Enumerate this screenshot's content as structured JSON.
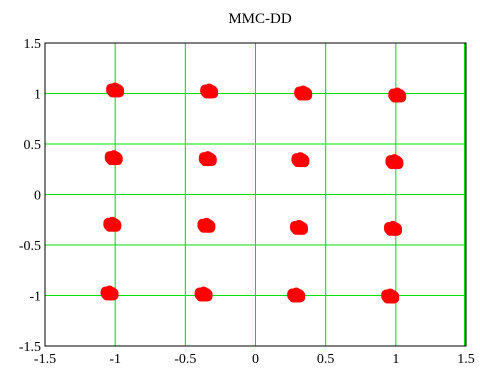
{
  "chart_data": {
    "type": "scatter",
    "title": "MMC-DD",
    "xlabel": "",
    "ylabel": "",
    "xlim": [
      -1.5,
      1.5
    ],
    "ylim": [
      -1.5,
      1.5
    ],
    "xticks": [
      -1.5,
      -1,
      -0.5,
      0,
      0.5,
      1,
      1.5
    ],
    "yticks": [
      -1.5,
      -1,
      -0.5,
      0,
      0.5,
      1,
      1.5
    ],
    "xtick_labels": [
      "-1.5",
      "-1",
      "-0.5",
      "0",
      "0.5",
      "1",
      "1.5"
    ],
    "ytick_labels": [
      "-1.5",
      "-1",
      "-0.5",
      "0",
      "0.5",
      "1",
      "1.5"
    ],
    "grid": true,
    "grid_color": "#00e000",
    "point_color": "#ff0000",
    "series": [
      {
        "points": [
          [
            -1.0,
            1.03
          ],
          [
            -0.33,
            1.02
          ],
          [
            0.34,
            1.0
          ],
          [
            1.01,
            0.98
          ],
          [
            -1.01,
            0.36
          ],
          [
            -0.34,
            0.35
          ],
          [
            0.32,
            0.34
          ],
          [
            0.99,
            0.32
          ],
          [
            -1.02,
            -0.3
          ],
          [
            -0.35,
            -0.31
          ],
          [
            0.31,
            -0.33
          ],
          [
            0.98,
            -0.34
          ],
          [
            -1.04,
            -0.98
          ],
          [
            -0.37,
            -0.99
          ],
          [
            0.29,
            -1.0
          ],
          [
            0.96,
            -1.01
          ]
        ]
      }
    ]
  }
}
